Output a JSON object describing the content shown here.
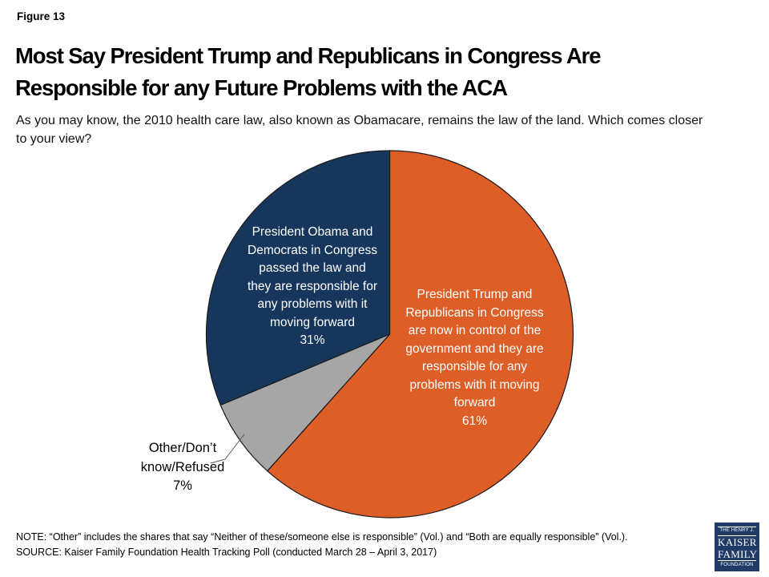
{
  "header": {
    "figure_label": "Figure 13",
    "title": "Most Say President Trump and Republicans in Congress Are\nResponsible for any Future Problems with the ACA",
    "subtitle": "As you may know, the 2010 health care law, also known as Obamacare, remains the law of the land. Which comes closer\nto your view?"
  },
  "chart_data": {
    "type": "pie",
    "title": "Most Say President Trump and Republicans in Congress Are Responsible for any Future Problems with the ACA",
    "question": "As you may know, the 2010 health care law, also known as Obamacare, remains the law of the land. Which comes closer to your view?",
    "start_angle_deg": 0,
    "direction": "clockwise",
    "border_color": "#1a1a1a",
    "leader_line_color": "#595959",
    "slices": [
      {
        "label": "President Trump and Republicans in Congress are now in control of the government and they are responsible for any problems with it moving forward",
        "value": 61,
        "pct": "61%",
        "color": "#DD5F27",
        "text_color": "#FFFFFF",
        "label_placement": "inside",
        "display": "President Trump and\nRepublicans in Congress\nare now in control of the\ngovernment and they are\nresponsible for any\nproblems with it moving\nforward\n61%"
      },
      {
        "label": "Other/Don’t know/Refused",
        "value": 7,
        "pct": "7%",
        "color": "#A6A6A6",
        "text_color": "#000000",
        "label_placement": "outside",
        "display": "Other/Don’t\nknow/Refused\n7%"
      },
      {
        "label": "President Obama and Democrats in Congress passed the law and they are responsible for any problems with it moving forward",
        "value": 31,
        "pct": "31%",
        "color": "#17365C",
        "text_color": "#FFFFFF",
        "label_placement": "inside",
        "display": "President Obama and\nDemocrats in Congress\npassed the law and\nthey are responsible for\nany problems with it\nmoving forward\n31%"
      }
    ]
  },
  "footer": {
    "note": "NOTE: “Other” includes the shares that say “Neither of these/someone else is responsible” (Vol.) and “Both are equally responsible” (Vol.).",
    "source": "SOURCE: Kaiser Family Foundation Health Tracking Poll (conducted March 28 – April 3, 2017)"
  },
  "logo": {
    "top": "THE HENRY J.",
    "name_line1": "KAISER",
    "name_line2": "FAMILY",
    "bottom": "FOUNDATION",
    "bg_color": "#1F3B66"
  }
}
